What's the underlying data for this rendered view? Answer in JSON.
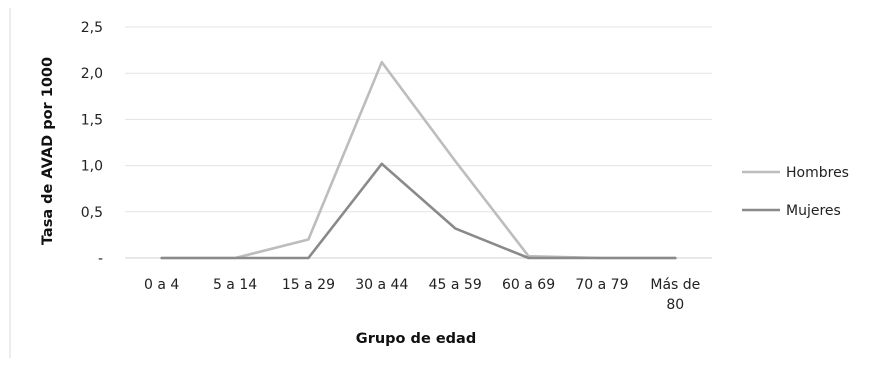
{
  "chart_data": {
    "type": "line",
    "title": "",
    "xlabel": "Grupo de edad",
    "ylabel": "Tasa de AVAD por 1000",
    "categories": [
      [
        "0 a 4"
      ],
      [
        "5 a 14"
      ],
      [
        "15 a 29"
      ],
      [
        "30 a 44"
      ],
      [
        "45 a 59"
      ],
      [
        "60 a 69"
      ],
      [
        "70 a 79"
      ],
      [
        "Más de",
        "80"
      ]
    ],
    "ylim": [
      0,
      2.5
    ],
    "yticks": [
      {
        "value": 0,
        "label": "-"
      },
      {
        "value": 0.5,
        "label": "0,5"
      },
      {
        "value": 1.0,
        "label": "1,0"
      },
      {
        "value": 1.5,
        "label": "1,5"
      },
      {
        "value": 2.0,
        "label": "2,0"
      },
      {
        "value": 2.5,
        "label": "2,5"
      }
    ],
    "grid": true,
    "legend_position": "right",
    "series": [
      {
        "name": "Hombres",
        "color": "#bdbdbd",
        "values": [
          0,
          0,
          0.2,
          2.12,
          1.05,
          0.02,
          0,
          0
        ]
      },
      {
        "name": "Mujeres",
        "color": "#8a8a8a",
        "values": [
          0,
          0,
          0,
          1.02,
          0.32,
          0,
          0,
          0
        ]
      }
    ]
  }
}
